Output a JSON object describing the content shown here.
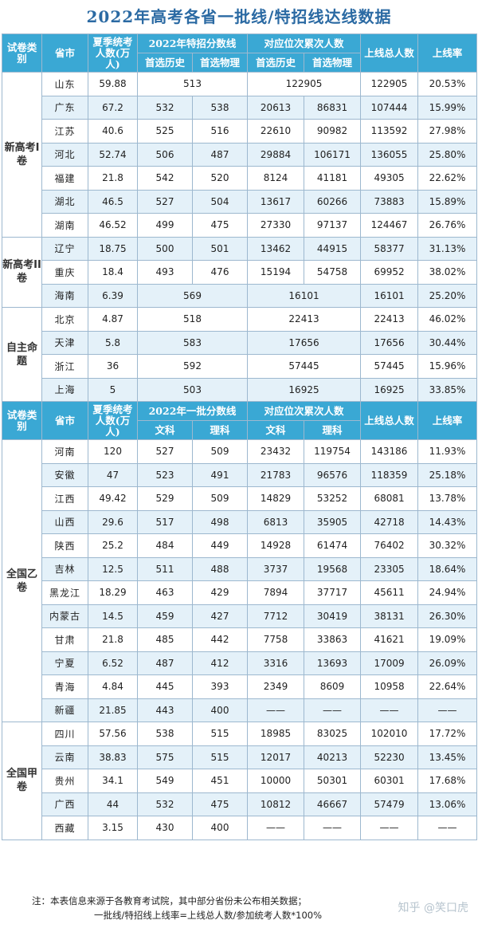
{
  "title": "2022年高考各省一批线/特招线达线数据",
  "header1": {
    "paper_type": "试卷类别",
    "province": "省市",
    "candidates": "夏季统考人数(万人)",
    "score_group": "2022年特招分数线",
    "score_sub": [
      "首选历史",
      "首选物理"
    ],
    "rank_group": "对应位次累次人数",
    "rank_sub": [
      "首选历史",
      "首选物理"
    ],
    "total": "上线总人数",
    "rate": "上线率"
  },
  "groups1": [
    {
      "label": "新高考I卷",
      "rows": [
        {
          "province": "山东",
          "candidates": "59.88",
          "merged_score": "513",
          "merged_rank": "122905",
          "total": "122905",
          "rate": "20.53%"
        },
        {
          "province": "广东",
          "candidates": "67.2",
          "s1": "532",
          "s2": "538",
          "r1": "20613",
          "r2": "86831",
          "total": "107444",
          "rate": "15.99%"
        },
        {
          "province": "江苏",
          "candidates": "40.6",
          "s1": "525",
          "s2": "516",
          "r1": "22610",
          "r2": "90982",
          "total": "113592",
          "rate": "27.98%"
        },
        {
          "province": "河北",
          "candidates": "52.74",
          "s1": "506",
          "s2": "487",
          "r1": "29884",
          "r2": "106171",
          "total": "136055",
          "rate": "25.80%"
        },
        {
          "province": "福建",
          "candidates": "21.8",
          "s1": "542",
          "s2": "520",
          "r1": "8124",
          "r2": "41181",
          "total": "49305",
          "rate": "22.62%"
        },
        {
          "province": "湖北",
          "candidates": "46.5",
          "s1": "527",
          "s2": "504",
          "r1": "13617",
          "r2": "60266",
          "total": "73883",
          "rate": "15.89%"
        },
        {
          "province": "湖南",
          "candidates": "46.52",
          "s1": "499",
          "s2": "475",
          "r1": "27330",
          "r2": "97137",
          "total": "124467",
          "rate": "26.76%"
        }
      ]
    },
    {
      "label": "新高考II卷",
      "rows": [
        {
          "province": "辽宁",
          "candidates": "18.75",
          "s1": "500",
          "s2": "501",
          "r1": "13462",
          "r2": "44915",
          "total": "58377",
          "rate": "31.13%"
        },
        {
          "province": "重庆",
          "candidates": "18.4",
          "s1": "493",
          "s2": "476",
          "r1": "15194",
          "r2": "54758",
          "total": "69952",
          "rate": "38.02%"
        },
        {
          "province": "海南",
          "candidates": "6.39",
          "merged_score": "569",
          "merged_rank": "16101",
          "total": "16101",
          "rate": "25.20%"
        }
      ]
    },
    {
      "label": "自主命题",
      "rows": [
        {
          "province": "北京",
          "candidates": "4.87",
          "merged_score": "518",
          "merged_rank": "22413",
          "total": "22413",
          "rate": "46.02%"
        },
        {
          "province": "天津",
          "candidates": "5.8",
          "merged_score": "583",
          "merged_rank": "17656",
          "total": "17656",
          "rate": "30.44%"
        },
        {
          "province": "浙江",
          "candidates": "36",
          "merged_score": "592",
          "merged_rank": "57445",
          "total": "57445",
          "rate": "15.96%"
        },
        {
          "province": "上海",
          "candidates": "5",
          "merged_score": "503",
          "merged_rank": "16925",
          "total": "16925",
          "rate": "33.85%"
        }
      ]
    }
  ],
  "header2": {
    "paper_type": "试卷类别",
    "province": "省市",
    "candidates": "夏季统考人数(万人)",
    "score_group": "2022年一批分数线",
    "score_sub": [
      "文科",
      "理科"
    ],
    "rank_group": "对应位次累次人数",
    "rank_sub": [
      "文科",
      "理科"
    ],
    "total": "上线总人数",
    "rate": "上线率"
  },
  "groups2": [
    {
      "label": "全国乙卷",
      "rows": [
        {
          "province": "河南",
          "candidates": "120",
          "s1": "527",
          "s2": "509",
          "r1": "23432",
          "r2": "119754",
          "total": "143186",
          "rate": "11.93%"
        },
        {
          "province": "安徽",
          "candidates": "47",
          "s1": "523",
          "s2": "491",
          "r1": "21783",
          "r2": "96576",
          "total": "118359",
          "rate": "25.18%"
        },
        {
          "province": "江西",
          "candidates": "49.42",
          "s1": "529",
          "s2": "509",
          "r1": "14829",
          "r2": "53252",
          "total": "68081",
          "rate": "13.78%"
        },
        {
          "province": "山西",
          "candidates": "29.6",
          "s1": "517",
          "s2": "498",
          "r1": "6813",
          "r2": "35905",
          "total": "42718",
          "rate": "14.43%"
        },
        {
          "province": "陕西",
          "candidates": "25.2",
          "s1": "484",
          "s2": "449",
          "r1": "14928",
          "r2": "61474",
          "total": "76402",
          "rate": "30.32%"
        },
        {
          "province": "吉林",
          "candidates": "12.5",
          "s1": "511",
          "s2": "488",
          "r1": "3737",
          "r2": "19568",
          "total": "23305",
          "rate": "18.64%"
        },
        {
          "province": "黑龙江",
          "candidates": "18.29",
          "s1": "463",
          "s2": "429",
          "r1": "7894",
          "r2": "37717",
          "total": "45611",
          "rate": "24.94%"
        },
        {
          "province": "内蒙古",
          "candidates": "14.5",
          "s1": "459",
          "s2": "427",
          "r1": "7712",
          "r2": "30419",
          "total": "38131",
          "rate": "26.30%"
        },
        {
          "province": "甘肃",
          "candidates": "21.8",
          "s1": "485",
          "s2": "442",
          "r1": "7758",
          "r2": "33863",
          "total": "41621",
          "rate": "19.09%"
        },
        {
          "province": "宁夏",
          "candidates": "6.52",
          "s1": "487",
          "s2": "412",
          "r1": "3316",
          "r2": "13693",
          "total": "17009",
          "rate": "26.09%"
        },
        {
          "province": "青海",
          "candidates": "4.84",
          "s1": "445",
          "s2": "393",
          "r1": "2349",
          "r2": "8609",
          "total": "10958",
          "rate": "22.64%"
        },
        {
          "province": "新疆",
          "candidates": "21.85",
          "s1": "443",
          "s2": "400",
          "r1": "——",
          "r2": "——",
          "total": "——",
          "rate": "——"
        }
      ]
    },
    {
      "label": "全国甲卷",
      "rows": [
        {
          "province": "四川",
          "candidates": "57.56",
          "s1": "538",
          "s2": "515",
          "r1": "18985",
          "r2": "83025",
          "total": "102010",
          "rate": "17.72%"
        },
        {
          "province": "云南",
          "candidates": "38.83",
          "s1": "575",
          "s2": "515",
          "r1": "12017",
          "r2": "40213",
          "total": "52230",
          "rate": "13.45%"
        },
        {
          "province": "贵州",
          "candidates": "34.1",
          "s1": "549",
          "s2": "451",
          "r1": "10000",
          "r2": "50301",
          "total": "60301",
          "rate": "17.68%"
        },
        {
          "province": "广西",
          "candidates": "44",
          "s1": "532",
          "s2": "475",
          "r1": "10812",
          "r2": "46667",
          "total": "57479",
          "rate": "13.06%"
        },
        {
          "province": "西藏",
          "candidates": "3.15",
          "s1": "430",
          "s2": "400",
          "r1": "——",
          "r2": "——",
          "total": "——",
          "rate": "——"
        }
      ]
    }
  ],
  "note_line1": "注：本表信息来源于各教育考试院，其中部分省份未公布相关数据；",
  "note_line2": "一批线/特招线上线率=上线总人数/参加统考人数*100%",
  "watermark": "知乎 @笑口虎",
  "colors": {
    "header_bg": "#3aa8d4",
    "alt_row_bg": "#e4f1f9",
    "title_color": "#2b6aa3",
    "border": "#9db8cf"
  }
}
